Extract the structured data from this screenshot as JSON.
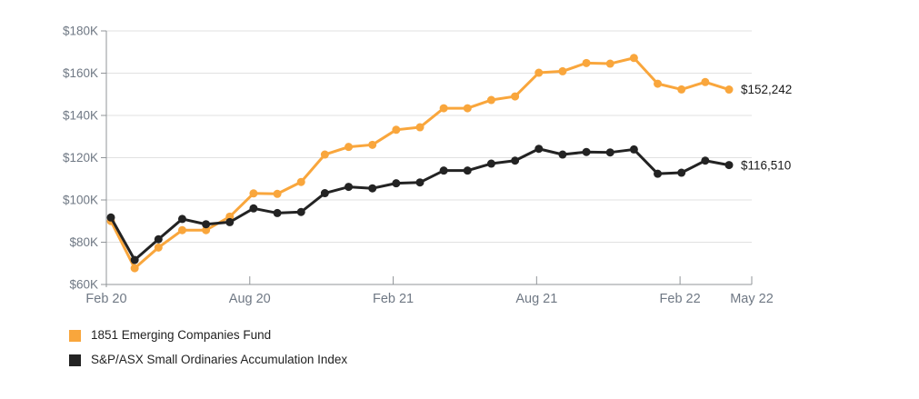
{
  "chart_data": {
    "type": "line",
    "title": "",
    "x_months": [
      "Feb 20",
      "Mar 20",
      "Apr 20",
      "May 20",
      "Jun 20",
      "Jul 20",
      "Aug 20",
      "Sep 20",
      "Oct 20",
      "Nov 20",
      "Dec 20",
      "Jan 21",
      "Feb 21",
      "Mar 21",
      "Apr 21",
      "May 21",
      "Jun 21",
      "Jul 21",
      "Aug 21",
      "Sep 21",
      "Oct 21",
      "Nov 21",
      "Dec 21",
      "Jan 22",
      "Feb 22",
      "Mar 22",
      "Apr 22"
    ],
    "series": [
      {
        "id": "fund",
        "name": "1851 Emerging Companies Fund",
        "color": "#F9A63C",
        "end_label": "$152,242",
        "values": [
          90000,
          67700,
          77500,
          85700,
          85700,
          92100,
          103100,
          102900,
          108500,
          121500,
          125100,
          126100,
          133200,
          134400,
          143400,
          143400,
          147300,
          149000,
          160200,
          160900,
          164800,
          164500,
          167200,
          155000,
          152300,
          155800,
          152242
        ]
      },
      {
        "id": "index",
        "name": "S&P/ASX Small Ordinaries Accumulation Index",
        "color": "#232323",
        "end_label": "$116,510",
        "values": [
          91700,
          71600,
          81400,
          91000,
          88500,
          89500,
          96000,
          93800,
          94300,
          103200,
          106200,
          105500,
          107900,
          108300,
          113900,
          113900,
          117200,
          118600,
          124200,
          121500,
          122700,
          122500,
          123900,
          112400,
          112900,
          118600,
          116510
        ]
      }
    ],
    "y_ticks": [
      {
        "label": "$60K",
        "value": 60000
      },
      {
        "label": "$80K",
        "value": 80000
      },
      {
        "label": "$100K",
        "value": 100000
      },
      {
        "label": "$120K",
        "value": 120000
      },
      {
        "label": "$140K",
        "value": 140000
      },
      {
        "label": "$160K",
        "value": 160000
      },
      {
        "label": "$180K",
        "value": 180000
      }
    ],
    "x_axis_ticks": [
      {
        "label": "Feb 20",
        "month": 0
      },
      {
        "label": "Aug 20",
        "month": 6
      },
      {
        "label": "Feb 21",
        "month": 12
      },
      {
        "label": "Aug 21",
        "month": 18
      },
      {
        "label": "Feb 22",
        "month": 24
      },
      {
        "label": "May 22",
        "month": 27
      }
    ],
    "ylim": [
      60000,
      180000
    ],
    "grid": "horizontal",
    "legend_position": "bottom-left",
    "style": {
      "grid_color": "#E1E1E1",
      "axis_color": "#919599",
      "tick_text_color": "#6F7884",
      "end_label_color": "#1A1A1A",
      "background": "#FFFFFF"
    }
  }
}
